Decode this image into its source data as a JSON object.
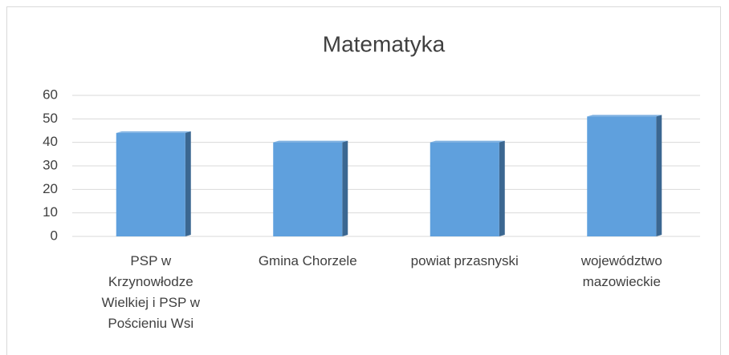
{
  "chart_data": {
    "type": "bar",
    "title": "Matematyka",
    "categories": [
      "PSP w Krzynowłodze Wielkiej i PSP w Pościeniu Wsi",
      "Gmina Chorzele",
      "powiat przasnyski",
      "województwo mazowieckie"
    ],
    "values": [
      44,
      40,
      40,
      51
    ],
    "color": "#5fa0dd",
    "ylim": [
      0,
      60
    ],
    "yticks": [
      0,
      10,
      20,
      30,
      40,
      50,
      60
    ],
    "grid": true
  }
}
